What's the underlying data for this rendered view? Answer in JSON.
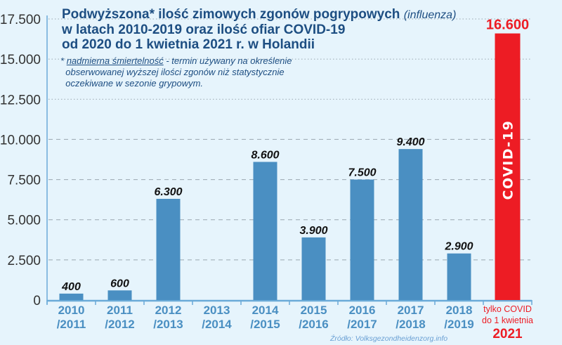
{
  "title": {
    "line1_bold": "Podwyższona* ilość zimowych zgonów pogrypowych",
    "line1_italic": "(influenza)",
    "line2": "w latach 2010-2019 oraz ilość ofiar COVID-19",
    "line3": "od 2020 do 1 kwietnia 2021 r. w Holandii"
  },
  "note": {
    "star": "*",
    "term": "nadmierna śmiertelność",
    "rest1": "- termin używany na określenie",
    "line2": "obserwowanej wyższej ilości zgonów niż statystycznie",
    "line3": "oczekiwane w sezonie grypowym."
  },
  "source": "Źródło: Volksgezondheidenzorg.info",
  "colors": {
    "bar": "#4a8fc2",
    "covid": "#ed1c24",
    "axis": "#6aaad8",
    "text": "#1d4e82",
    "background": "#e6f4fc"
  },
  "chart_data": {
    "type": "bar",
    "ylim": [
      0,
      17500
    ],
    "yticks": [
      "0",
      "2.500",
      "5.000",
      "7.500",
      "10.000",
      "12.500",
      "15.000",
      "17.500"
    ],
    "ytick_values": [
      0,
      2500,
      5000,
      7500,
      10000,
      12500,
      15000,
      17500
    ],
    "grid": true,
    "categories": [
      [
        "2010",
        "/2011"
      ],
      [
        "2011",
        "/2012"
      ],
      [
        "2012",
        "/2013"
      ],
      [
        "2013",
        "/2014"
      ],
      [
        "2014",
        "/2015"
      ],
      [
        "2015",
        "/2016"
      ],
      [
        "2016",
        "/2017"
      ],
      [
        "2017",
        "/2018"
      ],
      [
        "2018",
        "/2019"
      ]
    ],
    "values": [
      400,
      600,
      6300,
      null,
      8600,
      3900,
      7500,
      9400,
      2900
    ],
    "labels": [
      "400",
      "600",
      "6.300",
      "",
      "8.600",
      "3.900",
      "7.500",
      "9.400",
      "2.900"
    ],
    "covid": {
      "category": [
        "tylko COVID",
        "do 1 kwietnia",
        "2021"
      ],
      "value": 16600,
      "label": "16.600",
      "bar_text": "COVID-19"
    }
  }
}
